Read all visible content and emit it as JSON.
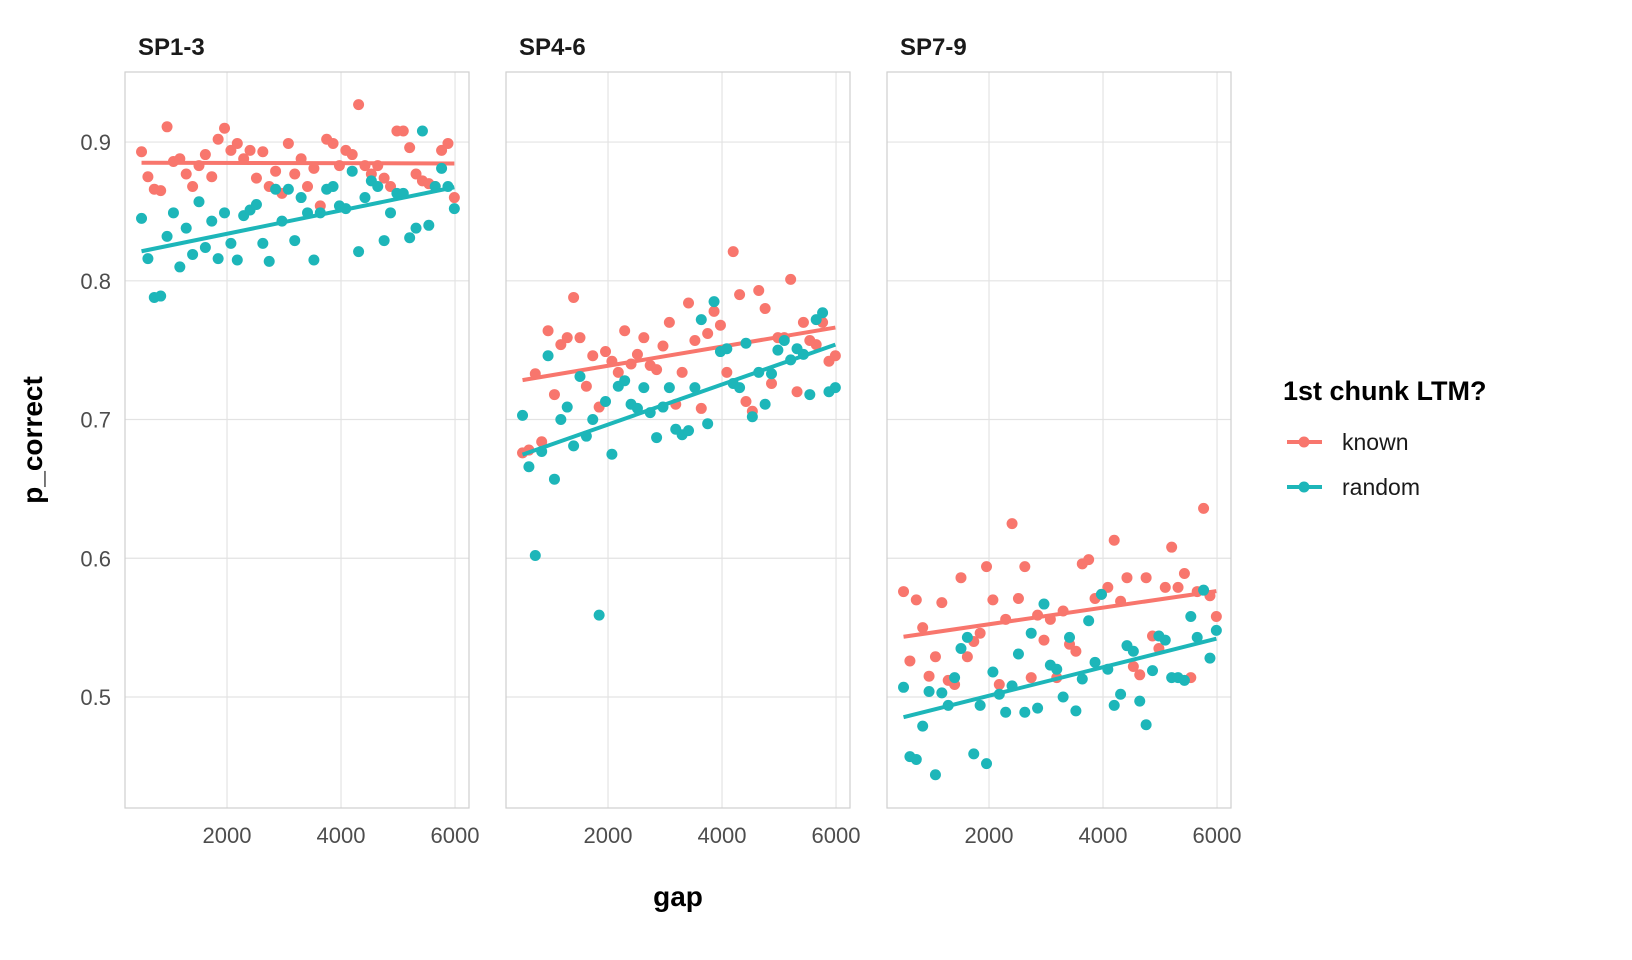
{
  "chart_data": {
    "type": "scatter",
    "xlabel": "gap",
    "ylabel": "p_correct",
    "xlim": [
      210,
      6245
    ],
    "ylim": [
      0.42,
      0.9505
    ],
    "x_ticks": [
      2000,
      4000,
      6000
    ],
    "y_ticks": [
      0.5,
      0.6,
      0.7,
      0.8,
      0.9
    ],
    "y_tick_labels": [
      "0.5",
      "0.6",
      "0.7",
      "0.8",
      "0.9"
    ],
    "x_tick_labels": [
      "2000",
      "4000",
      "6000"
    ],
    "grid": true,
    "trend_lines": "linear fit per series",
    "legend": {
      "title": "1st chunk LTM?",
      "placement": "right",
      "entries": [
        "known",
        "random"
      ]
    },
    "colors": {
      "known": "#F8766D",
      "random": "#1DB6B9"
    },
    "x": [
      500,
      612,
      724,
      836,
      948,
      1060,
      1172,
      1284,
      1396,
      1508,
      1620,
      1732,
      1844,
      1956,
      2068,
      2180,
      2292,
      2404,
      2516,
      2628,
      2740,
      2852,
      2964,
      3076,
      3188,
      3300,
      3412,
      3524,
      3636,
      3748,
      3860,
      3972,
      4084,
      4196,
      4308,
      4420,
      4532,
      4644,
      4756,
      4868,
      4980,
      5092,
      5204,
      5316,
      5428,
      5540,
      5652,
      5764,
      5876,
      5988
    ],
    "panels": [
      {
        "title": "SP1-3",
        "series": [
          {
            "name": "known",
            "values": [
              0.893,
              0.875,
              0.866,
              0.865,
              0.911,
              0.886,
              0.888,
              0.877,
              0.868,
              0.883,
              0.891,
              0.875,
              0.902,
              0.91,
              0.894,
              0.899,
              0.888,
              0.894,
              0.874,
              0.893,
              0.868,
              0.879,
              0.863,
              0.899,
              0.877,
              0.888,
              0.868,
              0.881,
              0.854,
              0.902,
              0.899,
              0.883,
              0.894,
              0.891,
              0.927,
              0.883,
              0.877,
              0.883,
              0.874,
              0.868,
              0.908,
              0.908,
              0.896,
              0.877,
              0.872,
              0.87,
              0.868,
              0.894,
              0.899,
              0.86
            ]
          },
          {
            "name": "random",
            "values": [
              0.845,
              0.816,
              0.788,
              0.789,
              0.832,
              0.849,
              0.81,
              0.838,
              0.819,
              0.857,
              0.824,
              0.843,
              0.816,
              0.849,
              0.827,
              0.815,
              0.847,
              0.851,
              0.855,
              0.827,
              0.814,
              0.866,
              0.843,
              0.866,
              0.829,
              0.86,
              0.849,
              0.815,
              0.849,
              0.866,
              0.868,
              0.854,
              0.852,
              0.879,
              0.821,
              0.86,
              0.872,
              0.868,
              0.829,
              0.849,
              0.863,
              0.863,
              0.831,
              0.838,
              0.908,
              0.84,
              0.868,
              0.881,
              0.868,
              0.852
            ]
          }
        ]
      },
      {
        "title": "SP4-6",
        "series": [
          {
            "name": "known",
            "values": [
              0.676,
              0.678,
              0.733,
              0.684,
              0.764,
              0.718,
              0.754,
              0.759,
              0.788,
              0.759,
              0.724,
              0.746,
              0.709,
              0.749,
              0.742,
              0.734,
              0.764,
              0.74,
              0.747,
              0.759,
              0.739,
              0.736,
              0.753,
              0.77,
              0.711,
              0.734,
              0.784,
              0.757,
              0.708,
              0.762,
              0.778,
              0.768,
              0.734,
              0.821,
              0.79,
              0.713,
              0.706,
              0.793,
              0.78,
              0.726,
              0.759,
              0.759,
              0.801,
              0.72,
              0.77,
              0.757,
              0.754,
              0.77,
              0.742,
              0.746
            ]
          },
          {
            "name": "random",
            "values": [
              0.703,
              0.666,
              0.602,
              0.677,
              0.746,
              0.657,
              0.7,
              0.709,
              0.681,
              0.731,
              0.688,
              0.7,
              0.559,
              0.713,
              0.675,
              0.724,
              0.728,
              0.711,
              0.708,
              0.723,
              0.705,
              0.687,
              0.709,
              0.723,
              0.693,
              0.689,
              0.692,
              0.723,
              0.772,
              0.697,
              0.785,
              0.749,
              0.751,
              0.726,
              0.723,
              0.755,
              0.702,
              0.734,
              0.711,
              0.733,
              0.75,
              0.757,
              0.743,
              0.751,
              0.747,
              0.718,
              0.772,
              0.777,
              0.72,
              0.723
            ]
          }
        ]
      },
      {
        "title": "SP7-9",
        "series": [
          {
            "name": "known",
            "values": [
              0.576,
              0.526,
              0.57,
              0.55,
              0.515,
              0.529,
              0.568,
              0.512,
              0.509,
              0.586,
              0.529,
              0.54,
              0.546,
              0.594,
              0.57,
              0.509,
              0.556,
              0.625,
              0.571,
              0.594,
              0.514,
              0.559,
              0.541,
              0.556,
              0.514,
              0.562,
              0.538,
              0.533,
              0.596,
              0.599,
              0.571,
              0.574,
              0.579,
              0.613,
              0.569,
              0.586,
              0.522,
              0.516,
              0.586,
              0.544,
              0.535,
              0.579,
              0.608,
              0.579,
              0.589,
              0.514,
              0.576,
              0.636,
              0.573,
              0.558
            ]
          },
          {
            "name": "random",
            "values": [
              0.507,
              0.457,
              0.455,
              0.479,
              0.504,
              0.444,
              0.503,
              0.494,
              0.514,
              0.535,
              0.543,
              0.459,
              0.494,
              0.452,
              0.518,
              0.502,
              0.489,
              0.508,
              0.531,
              0.489,
              0.546,
              0.492,
              0.567,
              0.523,
              0.52,
              0.5,
              0.543,
              0.49,
              0.513,
              0.555,
              0.525,
              0.574,
              0.52,
              0.494,
              0.502,
              0.537,
              0.533,
              0.497,
              0.48,
              0.519,
              0.544,
              0.541,
              0.514,
              0.514,
              0.512,
              0.558,
              0.543,
              0.577,
              0.528,
              0.548
            ]
          }
        ]
      }
    ]
  }
}
